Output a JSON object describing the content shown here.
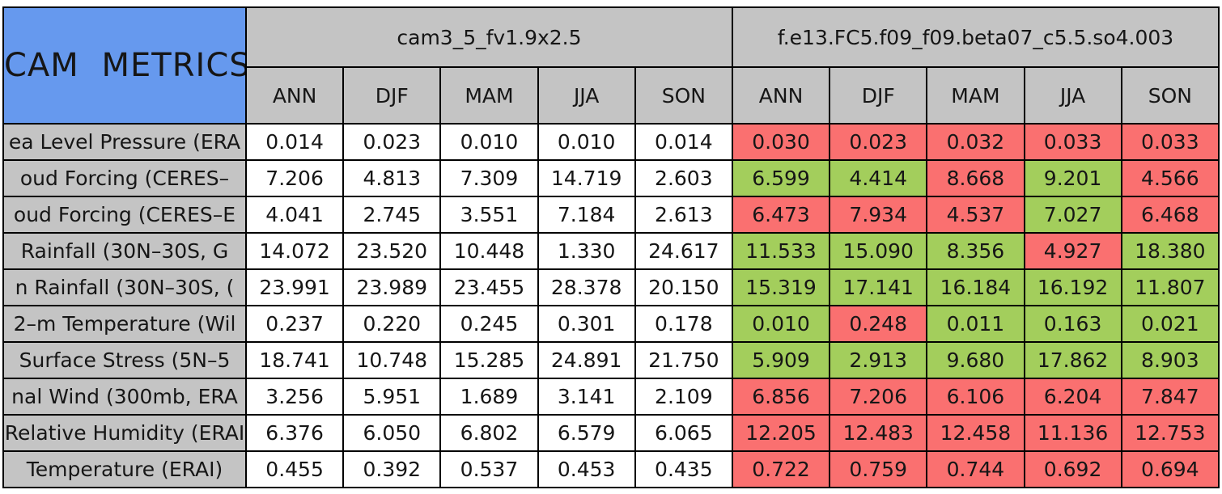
{
  "table": {
    "title": "CAM METRICS",
    "models": [
      "cam3_5_fv1.9x2.5",
      "f.e13.FC5.f09_f09.beta07_c5.5.so4.003"
    ],
    "seasons": [
      "ANN",
      "DJF",
      "MAM",
      "JJA",
      "SON"
    ],
    "rows": [
      {
        "label": "ea Level Pressure (ERA",
        "model1": [
          "0.014",
          "0.023",
          "0.010",
          "0.010",
          "0.014"
        ],
        "model2": [
          "0.030",
          "0.023",
          "0.032",
          "0.033",
          "0.033"
        ],
        "model2_colors": [
          "red",
          "red",
          "red",
          "red",
          "red"
        ]
      },
      {
        "label": "oud Forcing (CERES–",
        "model1": [
          "7.206",
          "4.813",
          "7.309",
          "14.719",
          "2.603"
        ],
        "model2": [
          "6.599",
          "4.414",
          "8.668",
          "9.201",
          "4.566"
        ],
        "model2_colors": [
          "green",
          "green",
          "red",
          "green",
          "red"
        ]
      },
      {
        "label": "oud Forcing (CERES–E",
        "model1": [
          "4.041",
          "2.745",
          "3.551",
          "7.184",
          "2.613"
        ],
        "model2": [
          "6.473",
          "7.934",
          "4.537",
          "7.027",
          "6.468"
        ],
        "model2_colors": [
          "red",
          "red",
          "red",
          "green",
          "red"
        ]
      },
      {
        "label": "Rainfall (30N–30S, G",
        "model1": [
          "14.072",
          "23.520",
          "10.448",
          "1.330",
          "24.617"
        ],
        "model2": [
          "11.533",
          "15.090",
          "8.356",
          "4.927",
          "18.380"
        ],
        "model2_colors": [
          "green",
          "green",
          "green",
          "red",
          "green"
        ]
      },
      {
        "label": "n Rainfall (30N–30S, (",
        "model1": [
          "23.991",
          "23.989",
          "23.455",
          "28.378",
          "20.150"
        ],
        "model2": [
          "15.319",
          "17.141",
          "16.184",
          "16.192",
          "11.807"
        ],
        "model2_colors": [
          "green",
          "green",
          "green",
          "green",
          "green"
        ]
      },
      {
        "label": "2–m Temperature (Wil",
        "model1": [
          "0.237",
          "0.220",
          "0.245",
          "0.301",
          "0.178"
        ],
        "model2": [
          "0.010",
          "0.248",
          "0.011",
          "0.163",
          "0.021"
        ],
        "model2_colors": [
          "green",
          "red",
          "green",
          "green",
          "green"
        ]
      },
      {
        "label": "Surface Stress (5N–5",
        "model1": [
          "18.741",
          "10.748",
          "15.285",
          "24.891",
          "21.750"
        ],
        "model2": [
          "5.909",
          "2.913",
          "9.680",
          "17.862",
          "8.903"
        ],
        "model2_colors": [
          "green",
          "green",
          "green",
          "green",
          "green"
        ]
      },
      {
        "label": "nal Wind (300mb, ERA",
        "model1": [
          "3.256",
          "5.951",
          "1.689",
          "3.141",
          "2.109"
        ],
        "model2": [
          "6.856",
          "7.206",
          "6.106",
          "6.204",
          "7.847"
        ],
        "model2_colors": [
          "red",
          "red",
          "red",
          "red",
          "red"
        ]
      },
      {
        "label": "Relative Humidity (ERAI",
        "model1": [
          "6.376",
          "6.050",
          "6.802",
          "6.579",
          "6.065"
        ],
        "model2": [
          "12.205",
          "12.483",
          "12.458",
          "11.136",
          "12.753"
        ],
        "model2_colors": [
          "red",
          "red",
          "red",
          "red",
          "red"
        ]
      },
      {
        "label": "Temperature (ERAI)",
        "model1": [
          "0.455",
          "0.392",
          "0.537",
          "0.453",
          "0.435"
        ],
        "model2": [
          "0.722",
          "0.759",
          "0.744",
          "0.692",
          "0.694"
        ],
        "model2_colors": [
          "red",
          "red",
          "red",
          "red",
          "red"
        ]
      }
    ]
  },
  "colors": {
    "title_bg": "#6699EE",
    "header_bg": "#C4C4C4",
    "label_bg": "#C4C4C4",
    "cell_bg": "#FFFFFF",
    "red_cell": "#FA7070",
    "green_cell": "#A3CE5C",
    "border": "#000000",
    "text": "#161616"
  },
  "chart_data": {
    "type": "table",
    "title": "CAM METRICS",
    "column_groups": [
      "cam3_5_fv1.9x2.5",
      "f.e13.FC5.f09_f09.beta07_c5.5.so4.003"
    ],
    "columns": [
      "ANN",
      "DJF",
      "MAM",
      "JJA",
      "SON"
    ],
    "row_labels": [
      "ea Level Pressure (ERA",
      "oud Forcing (CERES–",
      "oud Forcing (CERES–E",
      "Rainfall (30N–30S, G",
      "n Rainfall (30N–30S, (",
      "2–m Temperature (Wil",
      "Surface Stress (5N–5",
      "nal Wind (300mb, ERA",
      "Relative Humidity (ERAI",
      "Temperature (ERAI)"
    ],
    "series": [
      {
        "name": "cam3_5_fv1.9x2.5",
        "cell_background": "white",
        "values": [
          [
            0.014,
            0.023,
            0.01,
            0.01,
            0.014
          ],
          [
            7.206,
            4.813,
            7.309,
            14.719,
            2.603
          ],
          [
            4.041,
            2.745,
            3.551,
            7.184,
            2.613
          ],
          [
            14.072,
            23.52,
            10.448,
            1.33,
            24.617
          ],
          [
            23.991,
            23.989,
            23.455,
            28.378,
            20.15
          ],
          [
            0.237,
            0.22,
            0.245,
            0.301,
            0.178
          ],
          [
            18.741,
            10.748,
            15.285,
            24.891,
            21.75
          ],
          [
            3.256,
            5.951,
            1.689,
            3.141,
            2.109
          ],
          [
            6.376,
            6.05,
            6.802,
            6.579,
            6.065
          ],
          [
            0.455,
            0.392,
            0.537,
            0.453,
            0.435
          ]
        ]
      },
      {
        "name": "f.e13.FC5.f09_f09.beta07_c5.5.so4.003",
        "values": [
          [
            0.03,
            0.023,
            0.032,
            0.033,
            0.033
          ],
          [
            6.599,
            4.414,
            8.668,
            9.201,
            4.566
          ],
          [
            6.473,
            7.934,
            4.537,
            7.027,
            6.468
          ],
          [
            11.533,
            15.09,
            8.356,
            4.927,
            18.38
          ],
          [
            15.319,
            17.141,
            16.184,
            16.192,
            11.807
          ],
          [
            0.01,
            0.248,
            0.011,
            0.163,
            0.021
          ],
          [
            5.909,
            2.913,
            9.68,
            17.862,
            8.903
          ],
          [
            6.856,
            7.206,
            6.106,
            6.204,
            7.847
          ],
          [
            12.205,
            12.483,
            12.458,
            11.136,
            12.753
          ],
          [
            0.722,
            0.759,
            0.744,
            0.692,
            0.694
          ]
        ],
        "cell_colors": [
          [
            "red",
            "red",
            "red",
            "red",
            "red"
          ],
          [
            "green",
            "green",
            "red",
            "green",
            "red"
          ],
          [
            "red",
            "red",
            "red",
            "green",
            "red"
          ],
          [
            "green",
            "green",
            "green",
            "red",
            "green"
          ],
          [
            "green",
            "green",
            "green",
            "green",
            "green"
          ],
          [
            "green",
            "red",
            "green",
            "green",
            "green"
          ],
          [
            "green",
            "green",
            "green",
            "green",
            "green"
          ],
          [
            "red",
            "red",
            "red",
            "red",
            "red"
          ],
          [
            "red",
            "red",
            "red",
            "red",
            "red"
          ],
          [
            "red",
            "red",
            "red",
            "red",
            "red"
          ]
        ]
      }
    ],
    "layout": "10 data rows x (1 label column + 2 model groups x 5 season columns); grid on"
  }
}
